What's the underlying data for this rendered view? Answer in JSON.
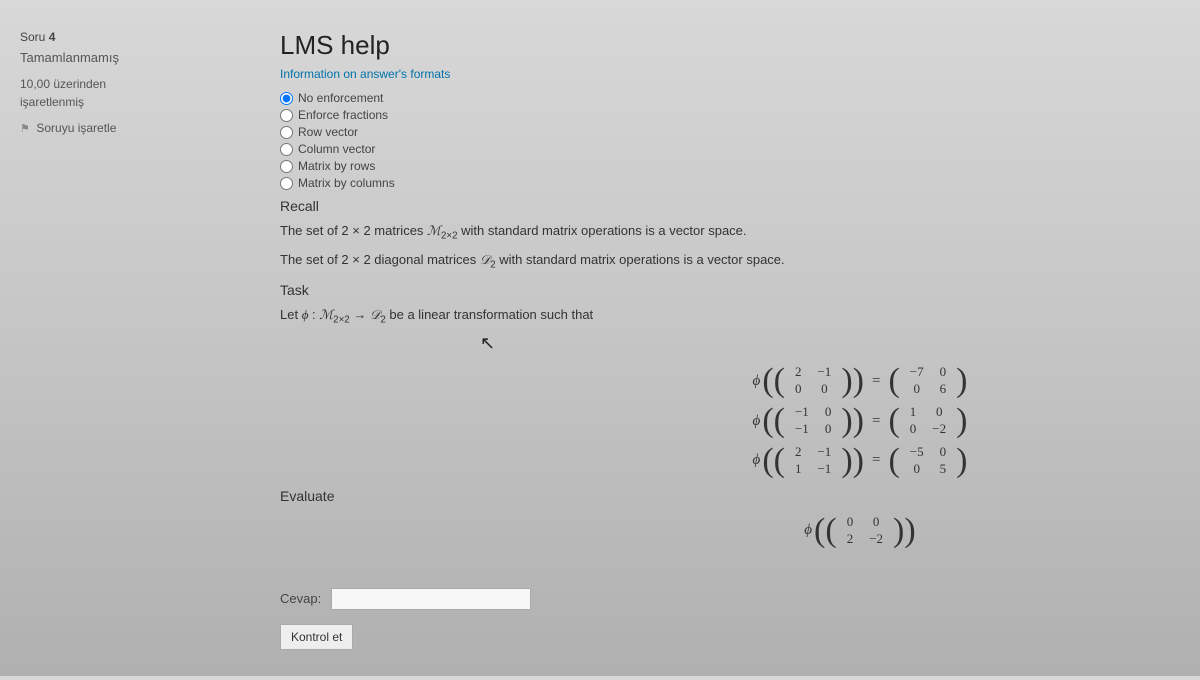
{
  "sidebar": {
    "question_label": "Soru",
    "question_number": "4",
    "status": "Tamamlanmamış",
    "grade_line1": "10,00 üzerinden",
    "grade_line2": "işaretlenmiş",
    "flag_label": "Soruyu işaretle"
  },
  "main": {
    "title": "LMS help",
    "info_link": "Information on answer's formats",
    "format_options": [
      {
        "label": "No enforcement",
        "checked": true
      },
      {
        "label": "Enforce fractions",
        "checked": false
      },
      {
        "label": "Row vector",
        "checked": false
      },
      {
        "label": "Column vector",
        "checked": false
      },
      {
        "label": "Matrix by rows",
        "checked": false
      },
      {
        "label": "Matrix by columns",
        "checked": false
      }
    ],
    "recall_label": "Recall",
    "recall_line1_pre": "The set of 2 × 2 matrices ",
    "recall_line1_sym": "ℳ",
    "recall_line1_sub": "2×2",
    "recall_line1_post": " with standard matrix operations is a vector space.",
    "recall_line2_pre": "The set of 2 × 2 diagonal matrices ",
    "recall_line2_sym": "𝒟",
    "recall_line2_sub": "2",
    "recall_line2_post": " with standard matrix operations is a vector space.",
    "task_label": "Task",
    "task_pre": "Let ",
    "task_phi": "ϕ",
    "task_colon": " : ",
    "task_dom": "ℳ",
    "task_dom_sub": "2×2",
    "task_arrow": " → ",
    "task_cod": "𝒟",
    "task_cod_sub": "2",
    "task_post": " be a linear transformation such that",
    "equations": [
      {
        "phi": "ϕ",
        "A": [
          [
            "2",
            "−1"
          ],
          [
            "0",
            "0"
          ]
        ],
        "B": [
          [
            "−7",
            "0"
          ],
          [
            "0",
            "6"
          ]
        ]
      },
      {
        "phi": "ϕ",
        "A": [
          [
            "−1",
            "0"
          ],
          [
            "−1",
            "0"
          ]
        ],
        "B": [
          [
            "1",
            "0"
          ],
          [
            "0",
            "−2"
          ]
        ]
      },
      {
        "phi": "ϕ",
        "A": [
          [
            "2",
            "−1"
          ],
          [
            "1",
            "−1"
          ]
        ],
        "B": [
          [
            "−5",
            "0"
          ],
          [
            "0",
            "5"
          ]
        ]
      }
    ],
    "evaluate_label": "Evaluate",
    "evaluate_eq": {
      "phi": "ϕ",
      "A": [
        [
          "0",
          "0"
        ],
        [
          "2",
          "−2"
        ]
      ]
    },
    "answer_label": "Cevap:",
    "button_label": "Kontrol et"
  }
}
